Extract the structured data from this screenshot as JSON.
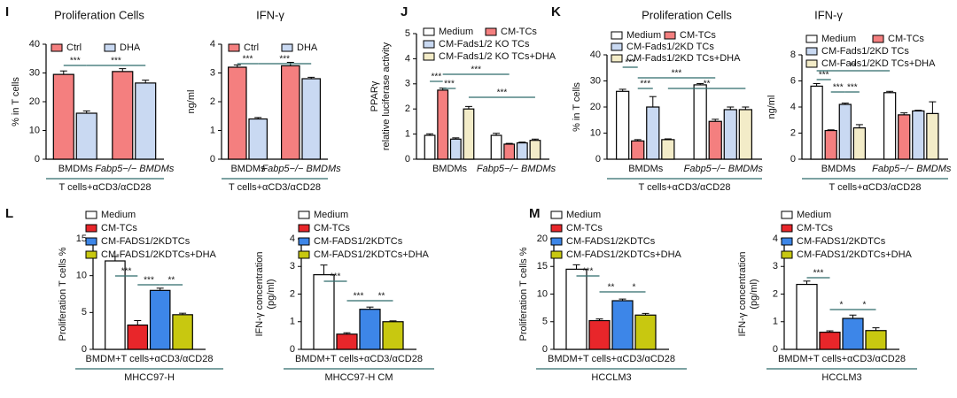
{
  "chart_data": [
    {
      "type": "bar",
      "panel": "I",
      "title": "Proliferation Cells",
      "ylabel": [
        "% in T cells"
      ],
      "categories": [
        "BMDMs",
        "Fabp5−/− BMDMs"
      ],
      "group_label": "T cells+αCD3/αCD28",
      "series": [
        {
          "name": "Ctrl",
          "color": "#f47f7f",
          "values": [
            29.5,
            30.5
          ],
          "errors": [
            1.2,
            1.0
          ]
        },
        {
          "name": "DHA",
          "color": "#c9d9f2",
          "values": [
            16,
            26.5
          ],
          "errors": [
            0.8,
            1.0
          ]
        }
      ],
      "ylim": [
        0,
        40
      ],
      "yticks": [
        0,
        10,
        20,
        30,
        40
      ],
      "significance": [
        "***",
        "***"
      ]
    },
    {
      "type": "bar",
      "title": "IFN-γ",
      "ylabel": [
        "ng/ml"
      ],
      "categories": [
        "BMDMs",
        "Fabp5−/− BMDMs"
      ],
      "group_label": "T cells+αCD3/αCD28",
      "series": [
        {
          "name": "Ctrl",
          "color": "#f47f7f",
          "values": [
            3.2,
            3.25
          ],
          "errors": [
            0.08,
            0.12
          ]
        },
        {
          "name": "DHA",
          "color": "#c9d9f2",
          "values": [
            1.4,
            2.8
          ],
          "errors": [
            0.05,
            0.05
          ]
        }
      ],
      "ylim": [
        0,
        4
      ],
      "yticks": [
        0,
        1,
        2,
        3,
        4
      ],
      "significance": [
        "***",
        "***"
      ]
    },
    {
      "type": "bar",
      "panel": "J",
      "ylabel": [
        "PPARγ",
        "relative luciferase activity"
      ],
      "categories": [
        "BMDMs",
        "Fabp5−/− BMDMs"
      ],
      "series": [
        {
          "name": "Medium",
          "color": "#ffffff",
          "values": [
            0.95,
            0.95
          ],
          "errors": [
            0.06,
            0.08
          ]
        },
        {
          "name": "CM-TCs",
          "color": "#f47f7f",
          "values": [
            2.75,
            0.6
          ],
          "errors": [
            0.08,
            0.03
          ]
        },
        {
          "name": "CM-Fads1/2 KO TCs",
          "color": "#c9d9f2",
          "values": [
            0.8,
            0.65
          ],
          "errors": [
            0.05,
            0.03
          ]
        },
        {
          "name": "CM-Fads1/2 KO TCs+DHA",
          "color": "#f3ecc8",
          "values": [
            2.0,
            0.75
          ],
          "errors": [
            0.1,
            0.05
          ]
        }
      ],
      "ylim": [
        0,
        5
      ],
      "yticks": [
        0,
        1,
        2,
        3,
        4,
        5
      ],
      "significance": [
        "***",
        "***",
        "***",
        "***"
      ]
    },
    {
      "type": "bar",
      "panel": "K",
      "title": "Proliferation Cells",
      "ylabel": [
        "% in T cells"
      ],
      "categories": [
        "BMDMs",
        "Fabp5−/− BMDMs"
      ],
      "group_label": "T cells+αCD3/αCD28",
      "series": [
        {
          "name": "Medium",
          "color": "#ffffff",
          "values": [
            26,
            28.5
          ],
          "errors": [
            0.8,
            0.5
          ]
        },
        {
          "name": "CM-TCs",
          "color": "#f47f7f",
          "values": [
            7,
            14.5
          ],
          "errors": [
            0.5,
            0.8
          ]
        },
        {
          "name": "CM-Fads1/2KD TCs",
          "color": "#c9d9f2",
          "values": [
            20,
            19
          ],
          "errors": [
            4,
            1
          ]
        },
        {
          "name": "CM-Fads1/2KD TCs+DHA",
          "color": "#f3ecc8",
          "values": [
            7.5,
            19
          ],
          "errors": [
            0.3,
            1
          ]
        }
      ],
      "ylim": [
        0,
        40
      ],
      "yticks": [
        0,
        10,
        20,
        30,
        40
      ],
      "significance": [
        "***",
        "***",
        "***",
        "**"
      ]
    },
    {
      "type": "bar",
      "title": "IFN-γ",
      "ylabel": [
        "ng/ml"
      ],
      "categories": [
        "BMDMs",
        "Fabp5−/− BMDMs"
      ],
      "group_label": "T cells+αCD3/αCD28",
      "series": [
        {
          "name": "Medium",
          "color": "#ffffff",
          "values": [
            5.6,
            5.1
          ],
          "errors": [
            0.2,
            0.1
          ]
        },
        {
          "name": "CM-TCs",
          "color": "#f47f7f",
          "values": [
            2.2,
            3.4
          ],
          "errors": [
            0.05,
            0.15
          ]
        },
        {
          "name": "CM-Fads1/2KD TCs",
          "color": "#c9d9f2",
          "values": [
            4.2,
            3.7
          ],
          "errors": [
            0.1,
            0.05
          ]
        },
        {
          "name": "CM-Fads1/2KD TCs+DHA",
          "color": "#f3ecc8",
          "values": [
            2.4,
            3.5
          ],
          "errors": [
            0.25,
            0.9
          ]
        }
      ],
      "ylim": [
        0,
        8
      ],
      "yticks": [
        0,
        2,
        4,
        6,
        8
      ],
      "significance": [
        "***",
        "***",
        "***",
        "**"
      ]
    },
    {
      "type": "bar",
      "panel": "L",
      "ylabel": [
        "Proliferation T cells %"
      ],
      "categories": [
        "BMDM+T cells+αCD3/αCD28"
      ],
      "group_label": "MHCC97-H",
      "series": [
        {
          "name": "Medium",
          "color": "#ffffff",
          "values": [
            12
          ],
          "errors": [
            0.6
          ]
        },
        {
          "name": "CM-TCs",
          "color": "#e8262a",
          "values": [
            3.3
          ],
          "errors": [
            0.6
          ]
        },
        {
          "name": "CM-FADS1/2KDTCs",
          "color": "#3d86e8",
          "values": [
            8
          ],
          "errors": [
            0.3
          ]
        },
        {
          "name": "CM-FADS1/2KDTCs+DHA",
          "color": "#c8c810",
          "values": [
            4.7
          ],
          "errors": [
            0.2
          ]
        }
      ],
      "ylim": [
        0,
        15
      ],
      "yticks": [
        0,
        5,
        10,
        15
      ],
      "significance": [
        "***",
        "***",
        "**"
      ]
    },
    {
      "type": "bar",
      "ylabel": [
        "IFN-γ concentration",
        "(pg/ml)"
      ],
      "categories": [
        "BMDM+T cells+αCD3/αCD28"
      ],
      "group_label": "MHCC97-H CM",
      "series": [
        {
          "name": "Medium",
          "color": "#ffffff",
          "values": [
            2.7
          ],
          "errors": [
            0.35
          ]
        },
        {
          "name": "CM-TCs",
          "color": "#e8262a",
          "values": [
            0.55
          ],
          "errors": [
            0.05
          ]
        },
        {
          "name": "CM-FADS1/2KDTCs",
          "color": "#3d86e8",
          "values": [
            1.45
          ],
          "errors": [
            0.08
          ]
        },
        {
          "name": "CM-FADS1/2KDTCs+DHA",
          "color": "#c8c810",
          "values": [
            1.0
          ],
          "errors": [
            0.03
          ]
        }
      ],
      "ylim": [
        0,
        4
      ],
      "yticks": [
        0,
        1,
        2,
        3,
        4
      ],
      "significance": [
        "***",
        "***",
        "**"
      ]
    },
    {
      "type": "bar",
      "panel": "M",
      "ylabel": [
        "Proliferation T cells %"
      ],
      "categories": [
        "BMDM+T cells+αCD3/αCD28"
      ],
      "group_label": "HCCLM3",
      "series": [
        {
          "name": "Medium",
          "color": "#ffffff",
          "values": [
            14.5
          ],
          "errors": [
            0.8
          ]
        },
        {
          "name": "CM-TCs",
          "color": "#e8262a",
          "values": [
            5.2
          ],
          "errors": [
            0.3
          ]
        },
        {
          "name": "CM-FADS1/2KDTCs",
          "color": "#3d86e8",
          "values": [
            8.8
          ],
          "errors": [
            0.3
          ]
        },
        {
          "name": "CM-FADS1/2KDTCs+DHA",
          "color": "#c8c810",
          "values": [
            6.2
          ],
          "errors": [
            0.3
          ]
        }
      ],
      "ylim": [
        0,
        20
      ],
      "yticks": [
        0,
        5,
        10,
        15,
        20
      ],
      "significance": [
        "***",
        "**",
        "*"
      ]
    },
    {
      "type": "bar",
      "ylabel": [
        "IFN-γ concentration",
        "(pg/ml)"
      ],
      "categories": [
        "BMDM+T cells+αCD3/αCD28"
      ],
      "group_label": "HCCLM3",
      "series": [
        {
          "name": "Medium",
          "color": "#ffffff",
          "values": [
            2.35
          ],
          "errors": [
            0.12
          ]
        },
        {
          "name": "CM-TCs",
          "color": "#e8262a",
          "values": [
            0.62
          ],
          "errors": [
            0.05
          ]
        },
        {
          "name": "CM-FADS1/2KDTCs",
          "color": "#3d86e8",
          "values": [
            1.12
          ],
          "errors": [
            0.12
          ]
        },
        {
          "name": "CM-FADS1/2KDTCs+DHA",
          "color": "#c8c810",
          "values": [
            0.68
          ],
          "errors": [
            0.1
          ]
        }
      ],
      "ylim": [
        0,
        4
      ],
      "yticks": [
        0,
        1,
        2,
        3,
        4
      ],
      "significance": [
        "***",
        "*",
        "*"
      ]
    }
  ]
}
